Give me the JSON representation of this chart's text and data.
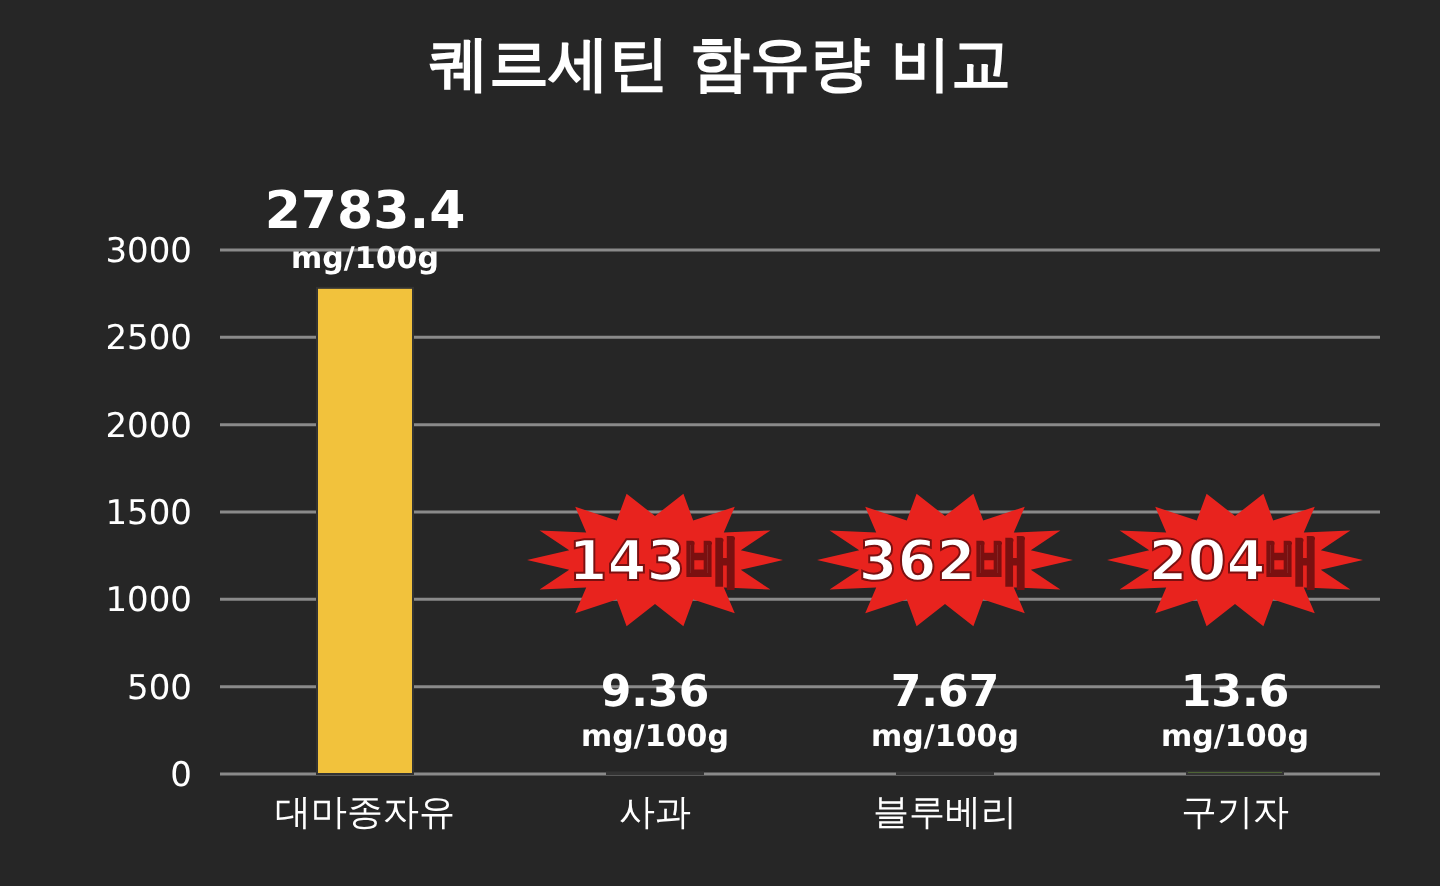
{
  "chart_data": {
    "type": "bar",
    "title": "퀘르세틴 함유량 비교",
    "categories": [
      "대마종자유",
      "사과",
      "블루베리",
      "구기자"
    ],
    "values": [
      2783.4,
      9.36,
      7.67,
      13.6
    ],
    "colors": [
      "#f2c23c",
      "#7cb83a",
      "#7cb83a",
      "#7cb83a"
    ],
    "value_labels": [
      "2783.4 mg/100g",
      "9.36 mg/100g",
      "7.67 mg/100g",
      "13.6 mg/100g"
    ],
    "annotations": [
      "143배",
      "362배",
      "204배"
    ],
    "ylim": [
      0,
      3000
    ],
    "yticks": [
      0,
      500,
      1000,
      1500,
      2000,
      2500,
      3000
    ],
    "grid": "y"
  }
}
